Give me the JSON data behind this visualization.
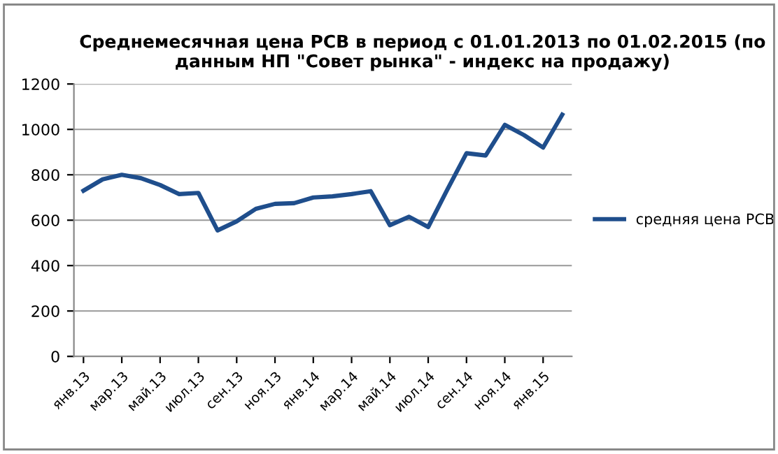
{
  "chart_data": {
    "type": "line",
    "title": "Среднемесячная цена РСВ в период с 01.01.2013 по 01.02.2015 (по данным НП \"Совет рынка\" - индекс на продажу)",
    "categories": [
      "янв.13",
      null,
      "мар.13",
      null,
      "май.13",
      null,
      "июл.13",
      null,
      "сен.13",
      null,
      "ноя.13",
      null,
      "янв.14",
      null,
      "мар.14",
      null,
      "май.14",
      null,
      "июл.14",
      null,
      "сен.14",
      null,
      "ноя.14",
      null,
      "янв.15",
      null
    ],
    "series": [
      {
        "name": "средняя цена РСВ",
        "color": "#1f4e8c",
        "values": [
          730,
          780,
          800,
          785,
          755,
          715,
          720,
          555,
          595,
          650,
          672,
          675,
          700,
          705,
          715,
          728,
          578,
          615,
          570,
          735,
          895,
          885,
          1020,
          975,
          920,
          1065
        ]
      }
    ],
    "ylim": [
      0,
      1200
    ],
    "yticks": [
      0,
      200,
      400,
      600,
      800,
      1000,
      1200
    ],
    "grid": "y",
    "legend": "right",
    "marker": "none",
    "line_style": "solid"
  }
}
